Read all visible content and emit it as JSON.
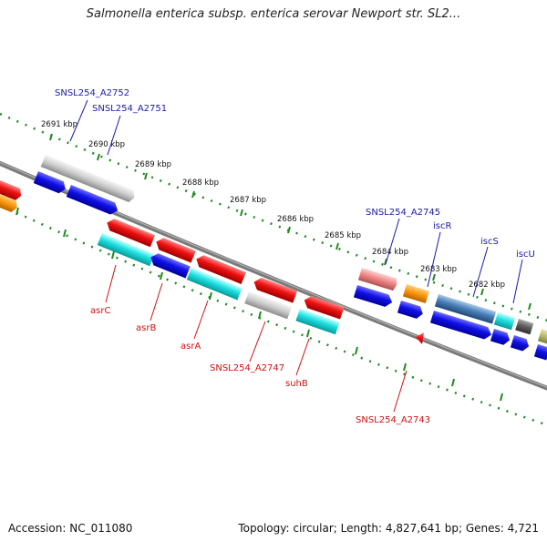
{
  "title": "Salmonella enterica subsp. enterica serovar Newport str. SL2...",
  "footer": {
    "accession": "Accession: NC_011080",
    "summary": "Topology: circular; Length: 4,827,641 bp; Genes: 4,721"
  },
  "ruler_labels": [
    "2691 kbp",
    "2690 kbp",
    "2689 kbp",
    "2688 kbp",
    "2687 kbp",
    "2686 kbp",
    "2685 kbp",
    "2684 kbp",
    "2683 kbp",
    "2682 kbp"
  ],
  "top_gene_labels": [
    "SNSL254_A2752",
    "SNSL254_A2751",
    "SNSL254_A2745",
    "iscR",
    "iscS",
    "iscU"
  ],
  "bottom_gene_labels": [
    "asrC",
    "asrB",
    "asrA",
    "SNSL254_A2747",
    "suhB",
    "SNSL254_A2743"
  ],
  "colors": {
    "top_label": "#1a1aa8",
    "bottom_label": "#cc1111",
    "ruler_green": "#1f8a1f",
    "backbone": "#7a7a7a"
  }
}
